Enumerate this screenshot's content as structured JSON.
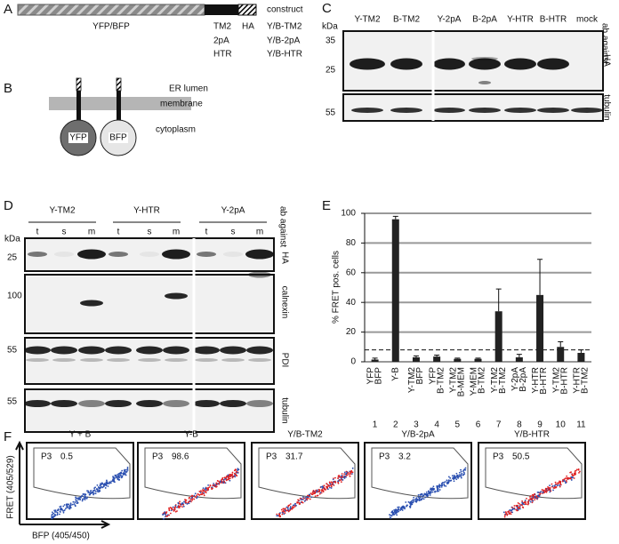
{
  "panel_labels": [
    "A",
    "B",
    "C",
    "D",
    "E",
    "F"
  ],
  "panel_a": {
    "bar_label": "YFP/BFP",
    "anchors": [
      "TM2",
      "2pA",
      "HTR"
    ],
    "tag": "HA",
    "header": "construct",
    "constructs": [
      "Y/B-TM2",
      "Y/B-2pA",
      "Y/B-HTR"
    ]
  },
  "panel_b": {
    "regions": [
      "ER lumen",
      "membrane",
      "cytoplasm"
    ],
    "proteins": [
      "YFP",
      "BFP"
    ]
  },
  "panel_c": {
    "lanes": [
      "Y-TM2",
      "B-TM2",
      "Y-2pA",
      "B-2pA",
      "Y-HTR",
      "B-HTR",
      "mock"
    ],
    "kda_unit": "kDa",
    "markers_upper": [
      35,
      25
    ],
    "markers_lower": [
      55
    ],
    "antibody_header": "ab against",
    "antibodies": [
      "HA",
      "tubulin"
    ]
  },
  "panel_d": {
    "groups": [
      "Y-TM2",
      "Y-HTR",
      "Y-2pA"
    ],
    "fractions": [
      "t",
      "s",
      "m"
    ],
    "kda_unit": "kDa",
    "markers": [
      25,
      100,
      55,
      55
    ],
    "antibody_header": "ab against",
    "antibodies": [
      "HA",
      "calnexin",
      "PDI",
      "tubulin"
    ]
  },
  "chart_data": {
    "type": "bar",
    "ylabel": "% FRET pos. cells",
    "categories": [
      [
        "YFP",
        "BFP"
      ],
      [
        "Y-B"
      ],
      [
        "Y-TM2",
        "BFP"
      ],
      [
        "YFP",
        "B-TM2"
      ],
      [
        "Y-TM2",
        "B-MEM"
      ],
      [
        "Y-MEM",
        "B-TM2"
      ],
      [
        "Y-TM2",
        "B-TM2"
      ],
      [
        "Y-2pA",
        "B-2pA"
      ],
      [
        "Y-HTR",
        "B-HTR"
      ],
      [
        "Y-TM2",
        "B-HTR"
      ],
      [
        "Y-HTR",
        "B-TM2"
      ]
    ],
    "lane_numbers": [
      1,
      2,
      3,
      4,
      5,
      6,
      7,
      8,
      9,
      10,
      11
    ],
    "values": [
      1.5,
      96,
      3,
      3.5,
      2,
      2,
      34,
      3,
      45,
      10,
      6
    ],
    "errors": [
      1,
      2,
      1,
      1,
      0.5,
      0.5,
      15,
      2,
      24,
      3.5,
      2
    ],
    "color": "#222222",
    "ylim": [
      0,
      100
    ],
    "yticks": [
      0,
      20,
      40,
      60,
      80,
      100
    ],
    "grid": true,
    "threshold": 8
  },
  "panel_f": {
    "y_axis_label": "FRET (405/529)",
    "x_axis_label": "BFP (405/450)",
    "plots": [
      {
        "title": "Y + B",
        "gate": "P3",
        "percent": 0.5,
        "color": "#2a4fb0"
      },
      {
        "title": "Y-B",
        "gate": "P3",
        "percent": 98.6,
        "color": "#e02020"
      },
      {
        "title": "Y/B-TM2",
        "gate": "P3",
        "percent": 31.7,
        "color": "#e02020"
      },
      {
        "title": "Y/B-2pA",
        "gate": "P3",
        "percent": 3.2,
        "color": "#2a4fb0"
      },
      {
        "title": "Y/B-HTR",
        "gate": "P3",
        "percent": 50.5,
        "color": "#e02020"
      }
    ]
  }
}
